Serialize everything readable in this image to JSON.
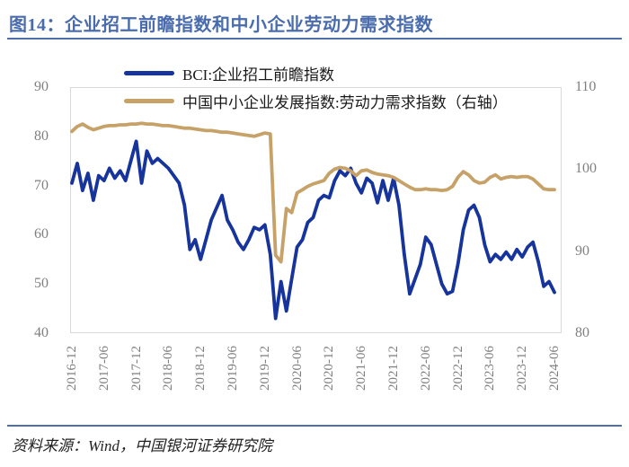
{
  "title": "图14：企业招工前瞻指数和中小企业劳动力需求指数",
  "source_note": "资料来源：Wind，中国银河证券研究院",
  "colors": {
    "title_blue": "#4a6cad",
    "rule_blue": "#4f6fab",
    "bci_blue": "#16349c",
    "sme_tan": "#c6a269",
    "tick_gray": "#7f7f7f",
    "plot_border": "#d9d9d9"
  },
  "chart_data": {
    "type": "line",
    "title": "企业招工前瞻指数和中小企业劳动力需求指数",
    "grid": false,
    "legend_position": "top",
    "x_tick_labels": [
      "2016-12",
      "2017-06",
      "2017-12",
      "2018-06",
      "2018-12",
      "2019-06",
      "2019-12",
      "2020-06",
      "2020-12",
      "2021-06",
      "2021-12",
      "2022-06",
      "2022-12",
      "2023-06",
      "2023-12",
      "2024-06"
    ],
    "left_axis": {
      "min": 40,
      "max": 90,
      "ticks": [
        90,
        80,
        70,
        60,
        50,
        40
      ]
    },
    "right_axis": {
      "min": 80,
      "max": 110,
      "ticks": [
        110,
        100,
        90,
        80
      ]
    },
    "months": [
      "2016-12",
      "2017-01",
      "2017-02",
      "2017-03",
      "2017-04",
      "2017-05",
      "2017-06",
      "2017-07",
      "2017-08",
      "2017-09",
      "2017-10",
      "2017-11",
      "2017-12",
      "2018-01",
      "2018-02",
      "2018-03",
      "2018-04",
      "2018-05",
      "2018-06",
      "2018-07",
      "2018-08",
      "2018-09",
      "2018-10",
      "2018-11",
      "2018-12",
      "2019-01",
      "2019-02",
      "2019-03",
      "2019-04",
      "2019-05",
      "2019-06",
      "2019-07",
      "2019-08",
      "2019-09",
      "2019-10",
      "2019-11",
      "2019-12",
      "2020-01",
      "2020-02",
      "2020-03",
      "2020-04",
      "2020-05",
      "2020-06",
      "2020-07",
      "2020-08",
      "2020-09",
      "2020-10",
      "2020-11",
      "2020-12",
      "2021-01",
      "2021-02",
      "2021-03",
      "2021-04",
      "2021-05",
      "2021-06",
      "2021-07",
      "2021-08",
      "2021-09",
      "2021-10",
      "2021-11",
      "2021-12",
      "2022-01",
      "2022-02",
      "2022-03",
      "2022-04",
      "2022-05",
      "2022-06",
      "2022-07",
      "2022-08",
      "2022-09",
      "2022-10",
      "2022-11",
      "2022-12",
      "2023-01",
      "2023-02",
      "2023-03",
      "2023-04",
      "2023-05",
      "2023-06",
      "2023-07",
      "2023-08",
      "2023-09",
      "2023-10",
      "2023-11",
      "2023-12",
      "2024-01",
      "2024-02",
      "2024-03",
      "2024-04",
      "2024-05",
      "2024-06"
    ],
    "series": [
      {
        "id": "bci",
        "name": "BCI:企业招工前瞻指数",
        "axis": "left",
        "color": "#16349c",
        "values": [
          70.5,
          74.5,
          69,
          72.5,
          67,
          72,
          71,
          73.5,
          71.5,
          73,
          71,
          75,
          79,
          70.5,
          77,
          74.5,
          75.5,
          74.5,
          73.5,
          72,
          70.5,
          66,
          57,
          59,
          55,
          59,
          63,
          65.5,
          68,
          63,
          61,
          58.5,
          57,
          59,
          61.5,
          61,
          62,
          56,
          43,
          50.5,
          44.5,
          51,
          57.5,
          59,
          62.5,
          63.5,
          67,
          68,
          67.5,
          71,
          73,
          72,
          73.5,
          70.5,
          68.5,
          71.5,
          70.5,
          66.5,
          71,
          67,
          71.5,
          66,
          56,
          48,
          51,
          54,
          59.5,
          58,
          54,
          50,
          48,
          48.5,
          54,
          61,
          65,
          66,
          63.5,
          58,
          54.5,
          56,
          55,
          56.5,
          55,
          57,
          55.5,
          57.5,
          58.5,
          54.5,
          49.5,
          50.5,
          48.3
        ]
      },
      {
        "id": "sme-labor",
        "name": "中国中小企业发展指数:劳动力需求指数（右轴）",
        "axis": "right",
        "color": "#c6a269",
        "values": [
          104.6,
          105.2,
          105.5,
          105.1,
          104.8,
          105,
          105.2,
          105.3,
          105.3,
          105.4,
          105.4,
          105.5,
          105.5,
          105.6,
          105.5,
          105.5,
          105.4,
          105.3,
          105.3,
          105.2,
          105.1,
          105,
          105,
          104.9,
          104.8,
          104.7,
          104.7,
          104.6,
          104.5,
          104.5,
          104.4,
          104.3,
          104.2,
          104.1,
          104,
          104.2,
          104.4,
          104.3,
          89.5,
          88.7,
          95.2,
          94.7,
          97.1,
          97.5,
          97.9,
          98.2,
          98.4,
          98.6,
          99.5,
          100,
          100.2,
          100.1,
          99.8,
          99.2,
          99.8,
          99.9,
          99.6,
          99.4,
          99.3,
          99.2,
          99,
          98.6,
          98.2,
          97.8,
          97.5,
          97.5,
          97.6,
          97.5,
          97.5,
          97.4,
          97.5,
          97.9,
          99,
          99.7,
          99.3,
          98.6,
          98.3,
          98.4,
          99,
          99.3,
          98.8,
          99,
          99.1,
          99,
          99.1,
          99.1,
          98.8,
          98.2,
          97.6,
          97.5,
          97.5
        ]
      }
    ]
  }
}
